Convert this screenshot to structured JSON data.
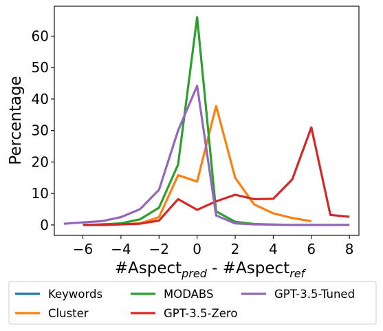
{
  "chart_data": {
    "type": "line",
    "xlabel": {
      "base": "#Aspect",
      "sub1": "pred",
      "mid": " - #Aspect",
      "sub2": "ref"
    },
    "ylabel": "Percentage",
    "xlim": [
      -7.5,
      8.5
    ],
    "ylim": [
      -3.3,
      69.5
    ],
    "xticks": [
      -6,
      -4,
      -2,
      0,
      2,
      4,
      6,
      8
    ],
    "xtick_labels": [
      "−6",
      "−4",
      "−2",
      "0",
      "2",
      "4",
      "6",
      "8"
    ],
    "yticks": [
      0,
      10,
      20,
      30,
      40,
      50,
      60
    ],
    "ytick_labels": [
      "0",
      "10",
      "20",
      "30",
      "40",
      "50",
      "60"
    ],
    "grid": false,
    "legend_position": "below",
    "series": [
      {
        "name": "Keywords",
        "color": "#1f77b4",
        "x": [],
        "y": []
      },
      {
        "name": "Cluster",
        "color": "#ff7f0e",
        "x": [
          -6,
          -5,
          -4,
          -3,
          -2,
          -1,
          0,
          1,
          2,
          3,
          4,
          5,
          6
        ],
        "y": [
          0,
          0,
          0.2,
          0.5,
          2.5,
          15.8,
          13.8,
          37.8,
          15.0,
          6.5,
          3.7,
          2.2,
          1.2
        ]
      },
      {
        "name": "MODABS",
        "color": "#2ca02c",
        "x": [
          -6,
          -5,
          -4,
          -3,
          -2,
          -1,
          0,
          1,
          2,
          3,
          4,
          5,
          6,
          7,
          8
        ],
        "y": [
          0,
          0.2,
          0.5,
          1.8,
          5.5,
          19.2,
          66.0,
          4.3,
          1.0,
          0.3,
          0.1,
          0,
          0,
          0,
          0
        ]
      },
      {
        "name": "GPT-3.5-Zero",
        "color": "#d62728",
        "x": [
          -6,
          -5,
          -4,
          -3,
          -2,
          -1,
          0,
          1,
          2,
          3,
          4,
          5,
          6,
          7,
          8
        ],
        "y": [
          0,
          0,
          0.2,
          0.4,
          1.4,
          8.2,
          4.8,
          7.5,
          9.6,
          8.2,
          8.3,
          14.5,
          31.0,
          3.2,
          2.6
        ]
      },
      {
        "name": "GPT-3.5-Tuned",
        "color": "#9467bd",
        "x": [
          -7,
          -6,
          -5,
          -4,
          -3,
          -2,
          -1,
          0,
          1,
          2,
          3,
          4,
          5,
          6,
          7,
          8
        ],
        "y": [
          0.4,
          0.8,
          1.2,
          2.5,
          5.0,
          11.2,
          30.0,
          44.2,
          3.0,
          0.5,
          0.2,
          0.1,
          0,
          0,
          0,
          0
        ]
      }
    ]
  },
  "legend": {
    "items": [
      {
        "label": "Keywords",
        "color": "#1f77b4"
      },
      {
        "label": "Cluster",
        "color": "#ff7f0e"
      },
      {
        "label": "MODABS",
        "color": "#2ca02c"
      },
      {
        "label": "GPT-3.5-Zero",
        "color": "#d62728"
      },
      {
        "label": "GPT-3.5-Tuned",
        "color": "#9467bd"
      }
    ]
  }
}
